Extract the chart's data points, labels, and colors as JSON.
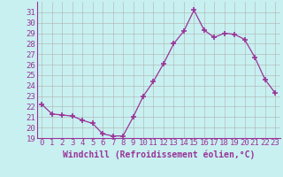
{
  "x": [
    0,
    1,
    2,
    3,
    4,
    5,
    6,
    7,
    8,
    9,
    10,
    11,
    12,
    13,
    14,
    15,
    16,
    17,
    18,
    19,
    20,
    21,
    22,
    23
  ],
  "y": [
    22.2,
    21.3,
    21.2,
    21.1,
    20.7,
    20.4,
    19.4,
    19.2,
    19.2,
    21.0,
    23.0,
    24.4,
    26.1,
    28.0,
    29.2,
    31.2,
    29.3,
    28.6,
    29.0,
    28.9,
    28.4,
    26.7,
    24.6,
    23.3
  ],
  "line_color": "#993399",
  "marker": "+",
  "marker_size": 4,
  "marker_lw": 1.2,
  "bg_color": "#c8f0f0",
  "grid_color": "#b0b0b0",
  "xlabel": "Windchill (Refroidissement éolien,°C)",
  "xlabel_fontsize": 7,
  "tick_fontsize": 6.5,
  "ylim": [
    19,
    32
  ],
  "yticks": [
    19,
    20,
    21,
    22,
    23,
    24,
    25,
    26,
    27,
    28,
    29,
    30,
    31
  ],
  "xtick_labels": [
    "0",
    "1",
    "2",
    "3",
    "4",
    "5",
    "6",
    "7",
    "8",
    "9",
    "10",
    "11",
    "12",
    "13",
    "14",
    "15",
    "16",
    "17",
    "18",
    "19",
    "20",
    "21",
    "22",
    "23"
  ]
}
